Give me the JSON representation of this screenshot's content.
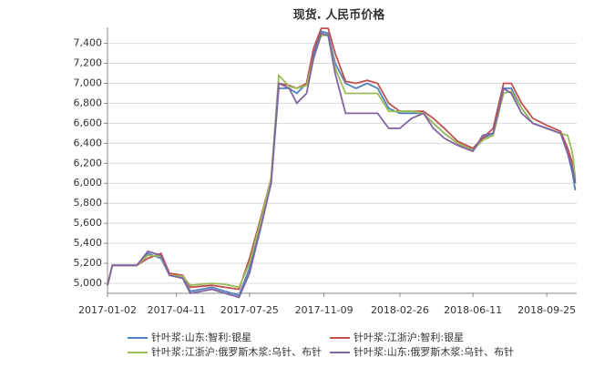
{
  "chart_data": {
    "type": "line",
    "title": "现货. 人民币价格",
    "x": [
      "2017-01-02",
      "2017-01-09",
      "2017-02-13",
      "2017-03-01",
      "2017-03-20",
      "2017-04-01",
      "2017-04-20",
      "2017-05-01",
      "2017-06-01",
      "2017-06-20",
      "2017-07-10",
      "2017-07-25",
      "2017-08-10",
      "2017-08-25",
      "2017-09-05",
      "2017-09-20",
      "2017-10-01",
      "2017-10-15",
      "2017-10-25",
      "2017-11-05",
      "2017-11-15",
      "2017-11-25",
      "2017-12-10",
      "2017-12-25",
      "2018-01-10",
      "2018-01-25",
      "2018-02-10",
      "2018-02-26",
      "2018-03-15",
      "2018-04-01",
      "2018-04-15",
      "2018-05-01",
      "2018-05-20",
      "2018-06-11",
      "2018-06-25",
      "2018-07-10",
      "2018-07-25",
      "2018-08-05",
      "2018-08-20",
      "2018-09-05",
      "2018-09-25",
      "2018-10-15",
      "2018-10-25",
      "2018-11-01",
      "2018-11-05"
    ],
    "series": [
      {
        "name": "针叶浆:山东:智利:银星",
        "color": "#4f81bd",
        "values": [
          4980,
          5180,
          5180,
          5300,
          5250,
          5080,
          5060,
          4920,
          4960,
          4920,
          4880,
          5150,
          5600,
          6000,
          6950,
          6950,
          6900,
          7000,
          7300,
          7520,
          7500,
          7200,
          7000,
          6950,
          7000,
          6950,
          6750,
          6700,
          6700,
          6700,
          6600,
          6500,
          6400,
          6330,
          6450,
          6500,
          6950,
          6950,
          6750,
          6600,
          6550,
          6500,
          6300,
          6100,
          5930
        ]
      },
      {
        "name": "针叶浆:江浙沪:智利:银星",
        "color": "#c0504d",
        "values": [
          4980,
          5180,
          5180,
          5250,
          5300,
          5100,
          5080,
          4960,
          4980,
          4960,
          4940,
          5250,
          5650,
          6050,
          7000,
          6980,
          6950,
          7000,
          7350,
          7550,
          7550,
          7300,
          7020,
          7000,
          7030,
          7000,
          6800,
          6720,
          6720,
          6720,
          6650,
          6550,
          6420,
          6350,
          6450,
          6550,
          7000,
          7000,
          6800,
          6650,
          6580,
          6520,
          6350,
          6200,
          6020
        ]
      },
      {
        "name": "针叶浆:江浙沪:俄罗斯木浆:乌针、布针",
        "color": "#9bbb59",
        "values": [
          4980,
          5180,
          5180,
          5280,
          5270,
          5080,
          5070,
          4980,
          5000,
          4990,
          4960,
          5200,
          5620,
          6050,
          7080,
          6970,
          6950,
          6980,
          7250,
          7480,
          7480,
          7150,
          6900,
          6900,
          6900,
          6900,
          6720,
          6720,
          6720,
          6700,
          6600,
          6500,
          6400,
          6330,
          6430,
          6480,
          6900,
          6920,
          6750,
          6600,
          6550,
          6500,
          6480,
          6300,
          6050
        ]
      },
      {
        "name": "针叶浆:山东:俄罗斯木浆:乌针、布针",
        "color": "#8064a2",
        "values": [
          4980,
          5180,
          5180,
          5320,
          5280,
          5080,
          5050,
          4900,
          4940,
          4900,
          4860,
          5100,
          5550,
          6000,
          7000,
          6950,
          6800,
          6900,
          7250,
          7500,
          7480,
          7100,
          6700,
          6700,
          6700,
          6700,
          6550,
          6550,
          6650,
          6700,
          6550,
          6450,
          6380,
          6320,
          6480,
          6500,
          6950,
          6900,
          6700,
          6600,
          6550,
          6500,
          6300,
          6150,
          6000
        ]
      }
    ],
    "xlim": [
      "2017-01-02",
      "2018-11-07"
    ],
    "xticks": [
      "2017-01-02",
      "2017-04-11",
      "2017-07-25",
      "2017-11-09",
      "2018-02-26",
      "2018-06-11",
      "2018-09-25"
    ],
    "ylim": [
      4900,
      7560
    ],
    "yticks": [
      {
        "value": 5000,
        "label": "5,000"
      },
      {
        "value": 5200,
        "label": "5,200"
      },
      {
        "value": 5400,
        "label": "5,400"
      },
      {
        "value": 5600,
        "label": "5,600"
      },
      {
        "value": 5800,
        "label": "5,800"
      },
      {
        "value": 6000,
        "label": "6,000"
      },
      {
        "value": 6200,
        "label": "6,200"
      },
      {
        "value": 6400,
        "label": "6,400"
      },
      {
        "value": 6600,
        "label": "6,600"
      },
      {
        "value": 6800,
        "label": "6,800"
      },
      {
        "value": 7000,
        "label": "7,000"
      },
      {
        "value": 7200,
        "label": "7,200"
      },
      {
        "value": 7400,
        "label": "7,400"
      }
    ],
    "grid": true
  }
}
